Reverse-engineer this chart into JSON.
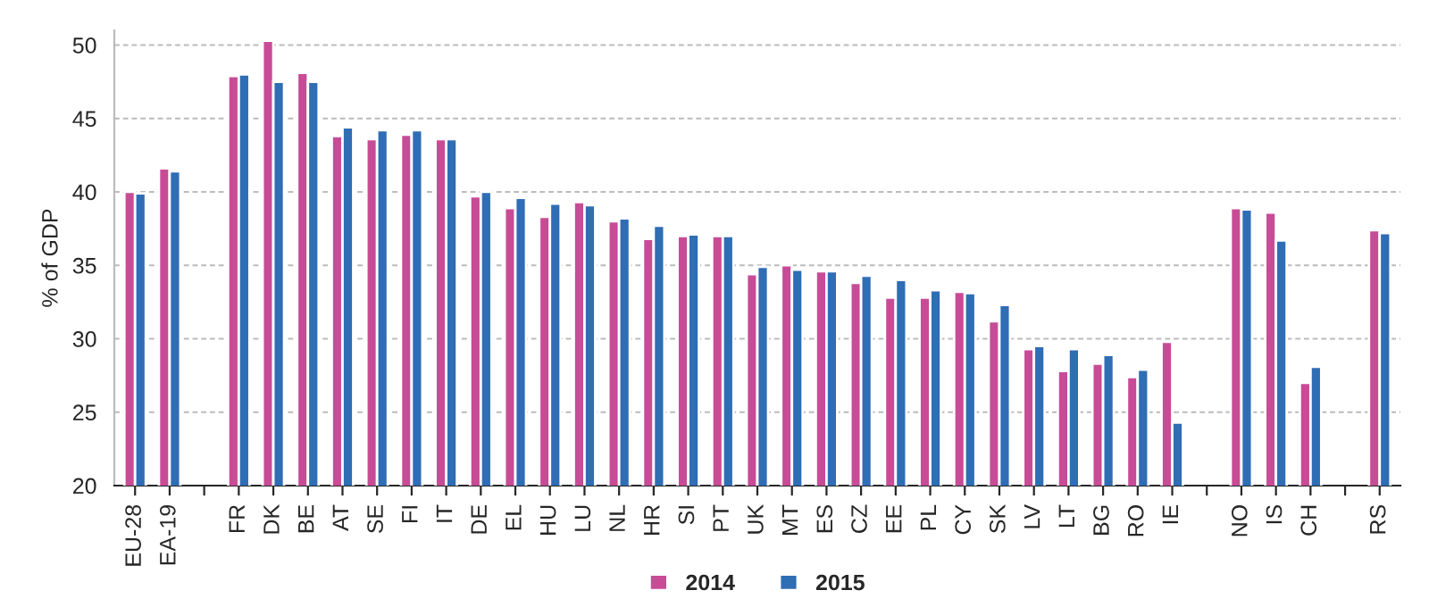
{
  "chart_data": {
    "type": "bar",
    "ylabel": "% of GDP",
    "categories": [
      "EU-28",
      "EA-19",
      null,
      "FR",
      "DK",
      "BE",
      "AT",
      "SE",
      "FI",
      "IT",
      "DE",
      "EL",
      "HU",
      "LU",
      "NL",
      "HR",
      "SI",
      "PT",
      "UK",
      "MT",
      "ES",
      "CZ",
      "EE",
      "PL",
      "CY",
      "SK",
      "LV",
      "LT",
      "BG",
      "RO",
      "IE",
      null,
      "NO",
      "IS",
      "CH",
      null,
      "RS"
    ],
    "series": [
      {
        "name": "2014",
        "color": "#c84b96",
        "values": [
          40.0,
          41.6,
          null,
          47.9,
          50.3,
          48.1,
          43.8,
          43.6,
          43.9,
          43.6,
          39.7,
          38.9,
          38.3,
          39.3,
          38.0,
          36.8,
          37.0,
          37.0,
          34.4,
          35.0,
          34.6,
          33.8,
          32.8,
          32.8,
          33.2,
          31.2,
          29.3,
          27.8,
          28.3,
          27.4,
          29.8,
          null,
          38.9,
          38.6,
          27.0,
          null,
          37.4
        ]
      },
      {
        "name": "2015",
        "color": "#2f6db5",
        "values": [
          39.9,
          41.4,
          null,
          48.0,
          47.5,
          47.5,
          44.4,
          44.2,
          44.2,
          43.6,
          40.0,
          39.6,
          39.2,
          39.1,
          38.2,
          37.7,
          37.1,
          37.0,
          34.9,
          34.7,
          34.6,
          34.3,
          34.0,
          33.3,
          33.1,
          32.3,
          29.5,
          29.3,
          28.9,
          27.9,
          24.3,
          null,
          38.8,
          36.7,
          28.1,
          null,
          37.2
        ]
      }
    ],
    "ylim": [
      20,
      51
    ],
    "yticks": [
      20,
      25,
      30,
      35,
      40,
      45,
      50
    ],
    "grid": "y",
    "legend": "bottom"
  }
}
